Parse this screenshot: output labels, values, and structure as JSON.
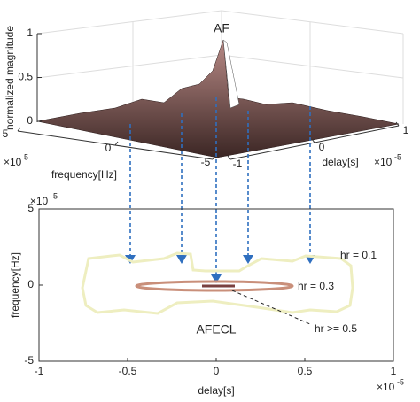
{
  "chart_data": [
    {
      "type": "surface",
      "title": "AF",
      "zlabel": "normalized magnitude",
      "zticks": [
        0,
        0.5,
        1
      ],
      "xlabel": "frequency[Hz]",
      "xticks": [
        5,
        0,
        -5
      ],
      "x_exponent": "×10",
      "x_exponent_power": "5",
      "ylabel": "delay[s]",
      "yticks": [
        -1,
        0,
        1
      ],
      "y_exponent": "×10",
      "y_exponent_power": "-5"
    },
    {
      "type": "contour",
      "title": "AFECL",
      "xlabel": "delay[s]",
      "ylabel": "frequency[Hz]",
      "xlim": [
        -1,
        1
      ],
      "ylim": [
        -5,
        5
      ],
      "xticks": [
        -1,
        -0.5,
        0,
        0.5,
        1
      ],
      "yticks": [
        -5,
        0,
        5
      ],
      "x_exponent": "×10",
      "x_exponent_power": "-5",
      "y_exponent": "×10",
      "y_exponent_power": "5",
      "levels": [
        "hr = 0.1",
        "hr = 0.3",
        "hr >= 0.5"
      ]
    }
  ]
}
